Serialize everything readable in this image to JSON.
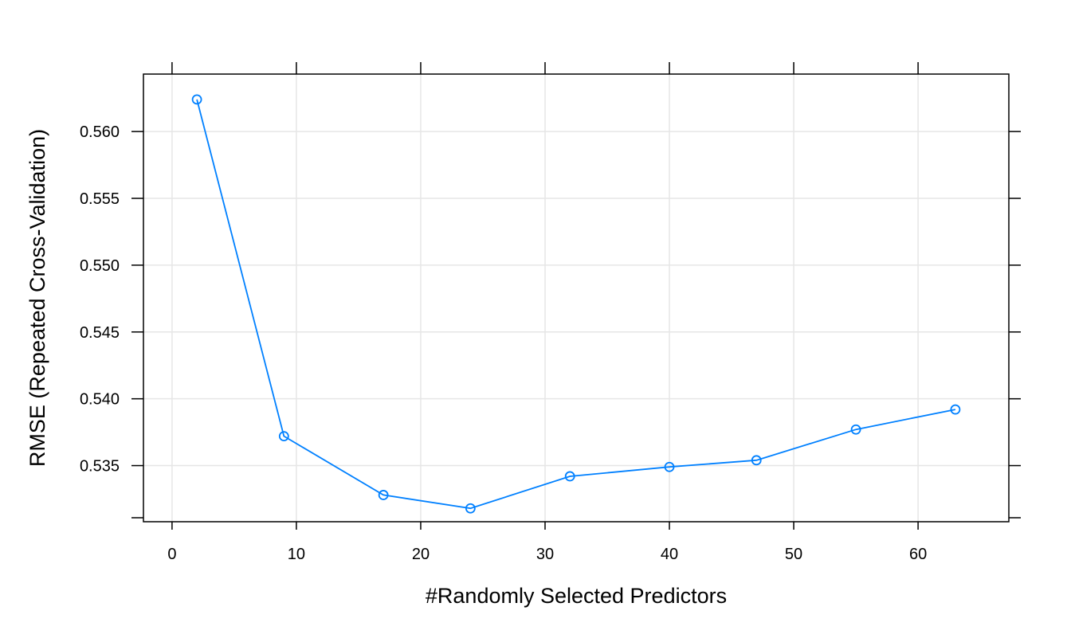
{
  "chart_data": {
    "type": "line",
    "title": "",
    "xlabel": "#Randomly Selected Predictors",
    "ylabel": "RMSE (Repeated Cross-Validation)",
    "xlim": [
      -2.3,
      67.3
    ],
    "ylim": [
      0.5308,
      0.5643
    ],
    "x_ticks": [
      0,
      10,
      20,
      30,
      40,
      50,
      60
    ],
    "x_tick_labels": [
      "0",
      "10",
      "20",
      "30",
      "40",
      "50",
      "60"
    ],
    "y_ticks": [
      0.535,
      0.54,
      0.545,
      0.55,
      0.555,
      0.56
    ],
    "y_tick_labels": [
      "0.535",
      "0.540",
      "0.545",
      "0.550",
      "0.555",
      "0.560"
    ],
    "grid": true,
    "series": [
      {
        "name": "RMSE",
        "color": "#0080ff",
        "x": [
          2,
          9,
          17,
          24,
          32,
          40,
          47,
          55,
          63
        ],
        "values": [
          0.5624,
          0.5372,
          0.5328,
          0.5318,
          0.5342,
          0.5349,
          0.5354,
          0.5377,
          0.5392
        ]
      }
    ]
  }
}
